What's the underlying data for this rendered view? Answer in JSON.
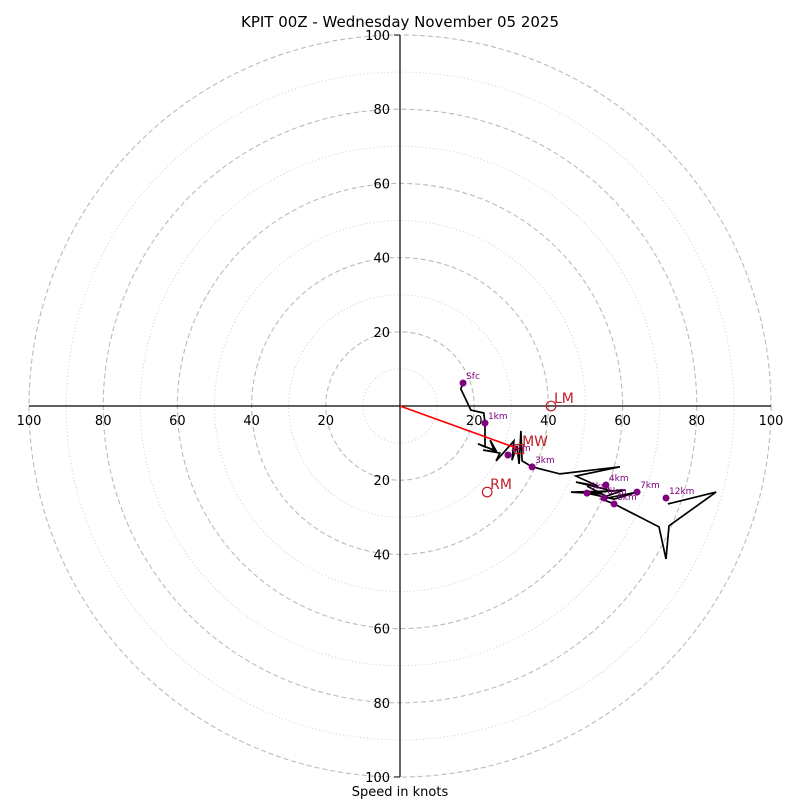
{
  "chart_data": {
    "type": "line",
    "title": "KPIT 00Z - Wednesday November 05 2025",
    "xlabel": "Speed in knots",
    "ylabel": "",
    "range_knots": 100,
    "ring_major_step": 20,
    "ring_minor_step": 10,
    "grid": true,
    "tick_labels": {
      "right": [
        "20",
        "40",
        "60",
        "80",
        "100"
      ],
      "left": [
        "100",
        "80",
        "60",
        "40",
        "20"
      ],
      "up": [
        "20",
        "40",
        "60",
        "80",
        "100"
      ],
      "down": [
        "20",
        "40",
        "60",
        "80",
        "100"
      ]
    },
    "tick_values": [
      20,
      40,
      60,
      80,
      100
    ],
    "colors": {
      "hodograph": "#000000",
      "height_markers": "#800080",
      "motion_markers": "#c0202a",
      "shear_vector": "#ff0000",
      "grid": "#bbbbbb"
    },
    "hodograph": {
      "u": [
        17.0,
        16.4,
        19.1,
        22.6,
        22.9,
        22.9,
        21.0,
        25.3,
        24.3,
        26.1,
        22.4,
        26.9,
        25.9,
        28.8,
        30.7,
        30.2,
        31.5,
        32.1,
        32.6,
        32.9,
        35.6,
        43.1,
        59.3,
        47.4,
        53.4,
        47.4,
        57.4,
        46.1,
        54.4,
        50.4,
        55.6,
        60.6,
        50.4,
        57.7,
        63.9,
        54.4,
        57.7,
        69.8,
        71.7,
        72.5,
        85.2,
        72.2
      ],
      "v": [
        6.2,
        4.6,
        -1.1,
        -1.9,
        -4.6,
        -11.0,
        -10.2,
        -11.9,
        -9.2,
        -12.4,
        -11.9,
        -12.7,
        -14.8,
        -11.6,
        -9.4,
        -14.6,
        -10.8,
        -15.6,
        -6.7,
        -14.8,
        -16.4,
        -18.3,
        -16.4,
        -18.9,
        -21.6,
        -20.5,
        -22.9,
        -23.2,
        -23.7,
        -21.6,
        -24.3,
        -22.6,
        -23.5,
        -25.1,
        -23.2,
        -25.1,
        -26.4,
        -32.6,
        -41.2,
        -32.3,
        -23.2,
        -26.4
      ]
    },
    "height_markers": [
      {
        "label": "Sfc",
        "u": 17.0,
        "v": 6.2
      },
      {
        "label": "1km",
        "u": 22.9,
        "v": -4.6
      },
      {
        "label": "2km",
        "u": 29.1,
        "v": -13.2
      },
      {
        "label": "3km",
        "u": 35.6,
        "v": -16.4
      },
      {
        "label": "4km",
        "u": 55.5,
        "v": -21.3
      },
      {
        "label": "5km",
        "u": 50.4,
        "v": -23.5
      },
      {
        "label": "6km",
        "u": 55.0,
        "v": -24.8
      },
      {
        "label": "7km",
        "u": 63.9,
        "v": -23.2
      },
      {
        "label": "8km",
        "u": 57.7,
        "v": -26.4
      },
      {
        "label": "12km",
        "u": 71.7,
        "v": -24.8
      }
    ],
    "storm_motion": [
      {
        "label": "LM",
        "u": 40.7,
        "v": 0.0,
        "shape": "circle"
      },
      {
        "label": "RM",
        "u": 23.5,
        "v": -23.2,
        "shape": "circle"
      },
      {
        "label": "MW",
        "u": 32.1,
        "v": -11.6,
        "shape": "square"
      }
    ],
    "shear_vector": {
      "from_u": 0,
      "from_v": 0,
      "to_u": 32.1,
      "to_v": -11.6
    }
  }
}
